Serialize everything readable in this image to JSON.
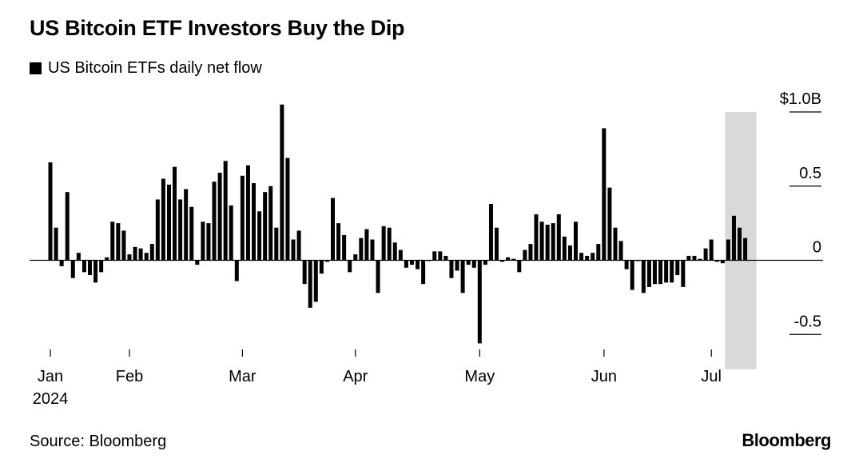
{
  "title": "US Bitcoin ETF Investors Buy the Dip",
  "legend": {
    "series_name": "US Bitcoin ETFs daily net flow",
    "color": "#000000"
  },
  "source": "Source: Bloomberg",
  "brand": "Bloomberg",
  "chart_data": {
    "type": "bar",
    "title": "US Bitcoin ETF Investors Buy the Dip",
    "xlabel": "",
    "ylabel": "",
    "ylim": [
      -0.6,
      1.0
    ],
    "y_ticks": [
      {
        "value": 1.0,
        "label": "$1.0B"
      },
      {
        "value": 0.5,
        "label": "0.5"
      },
      {
        "value": 0,
        "label": "0"
      },
      {
        "value": -0.5,
        "label": "-0.5"
      }
    ],
    "x_ticks": [
      {
        "index": 0,
        "label": "Jan",
        "sublabel": "2024"
      },
      {
        "index": 14,
        "label": "Feb",
        "sublabel": ""
      },
      {
        "index": 34,
        "label": "Mar",
        "sublabel": ""
      },
      {
        "index": 54,
        "label": "Apr",
        "sublabel": ""
      },
      {
        "index": 76,
        "label": "May",
        "sublabel": ""
      },
      {
        "index": 98,
        "label": "Jun",
        "sublabel": ""
      },
      {
        "index": 117,
        "label": "Jul",
        "sublabel": ""
      }
    ],
    "highlight": {
      "start_index": 120,
      "end_index": 123,
      "color": "#d9d9d9"
    },
    "bar_color": "#000000",
    "grid": false,
    "legend_position": "top-left",
    "series": [
      {
        "name": "US Bitcoin ETFs daily net flow",
        "values": [
          0.66,
          0.22,
          -0.04,
          0.46,
          -0.12,
          0.05,
          -0.08,
          -0.1,
          -0.15,
          -0.08,
          0.02,
          0.26,
          0.25,
          0.2,
          0.04,
          0.09,
          0.08,
          0.05,
          0.11,
          0.41,
          0.55,
          0.51,
          0.63,
          0.41,
          0.48,
          0.36,
          -0.03,
          0.26,
          0.25,
          0.53,
          0.59,
          0.67,
          0.37,
          -0.14,
          0.57,
          0.64,
          0.52,
          0.33,
          0.46,
          0.5,
          0.22,
          1.05,
          0.69,
          0.14,
          0.2,
          -0.16,
          -0.32,
          -0.28,
          -0.09,
          -0.01,
          0.42,
          0.25,
          0.17,
          -0.08,
          0.04,
          0.15,
          0.21,
          0.14,
          -0.22,
          0.23,
          0.22,
          0.12,
          0.07,
          -0.05,
          -0.03,
          -0.06,
          -0.16,
          0.0,
          0.06,
          0.06,
          0.03,
          -0.12,
          -0.07,
          -0.22,
          -0.03,
          -0.05,
          -0.56,
          -0.03,
          0.38,
          0.22,
          -0.01,
          0.02,
          0.01,
          -0.08,
          0.07,
          0.11,
          0.31,
          0.26,
          0.24,
          0.25,
          0.31,
          0.16,
          0.1,
          0.26,
          0.05,
          0.03,
          0.05,
          0.11,
          0.89,
          0.49,
          0.22,
          0.13,
          -0.06,
          -0.2,
          0.0,
          -0.22,
          -0.18,
          -0.16,
          -0.16,
          -0.15,
          -0.15,
          -0.1,
          -0.18,
          0.03,
          0.03,
          0.01,
          0.08,
          0.14,
          -0.01,
          -0.02,
          0.14,
          0.3,
          0.22,
          0.15
        ]
      }
    ]
  }
}
